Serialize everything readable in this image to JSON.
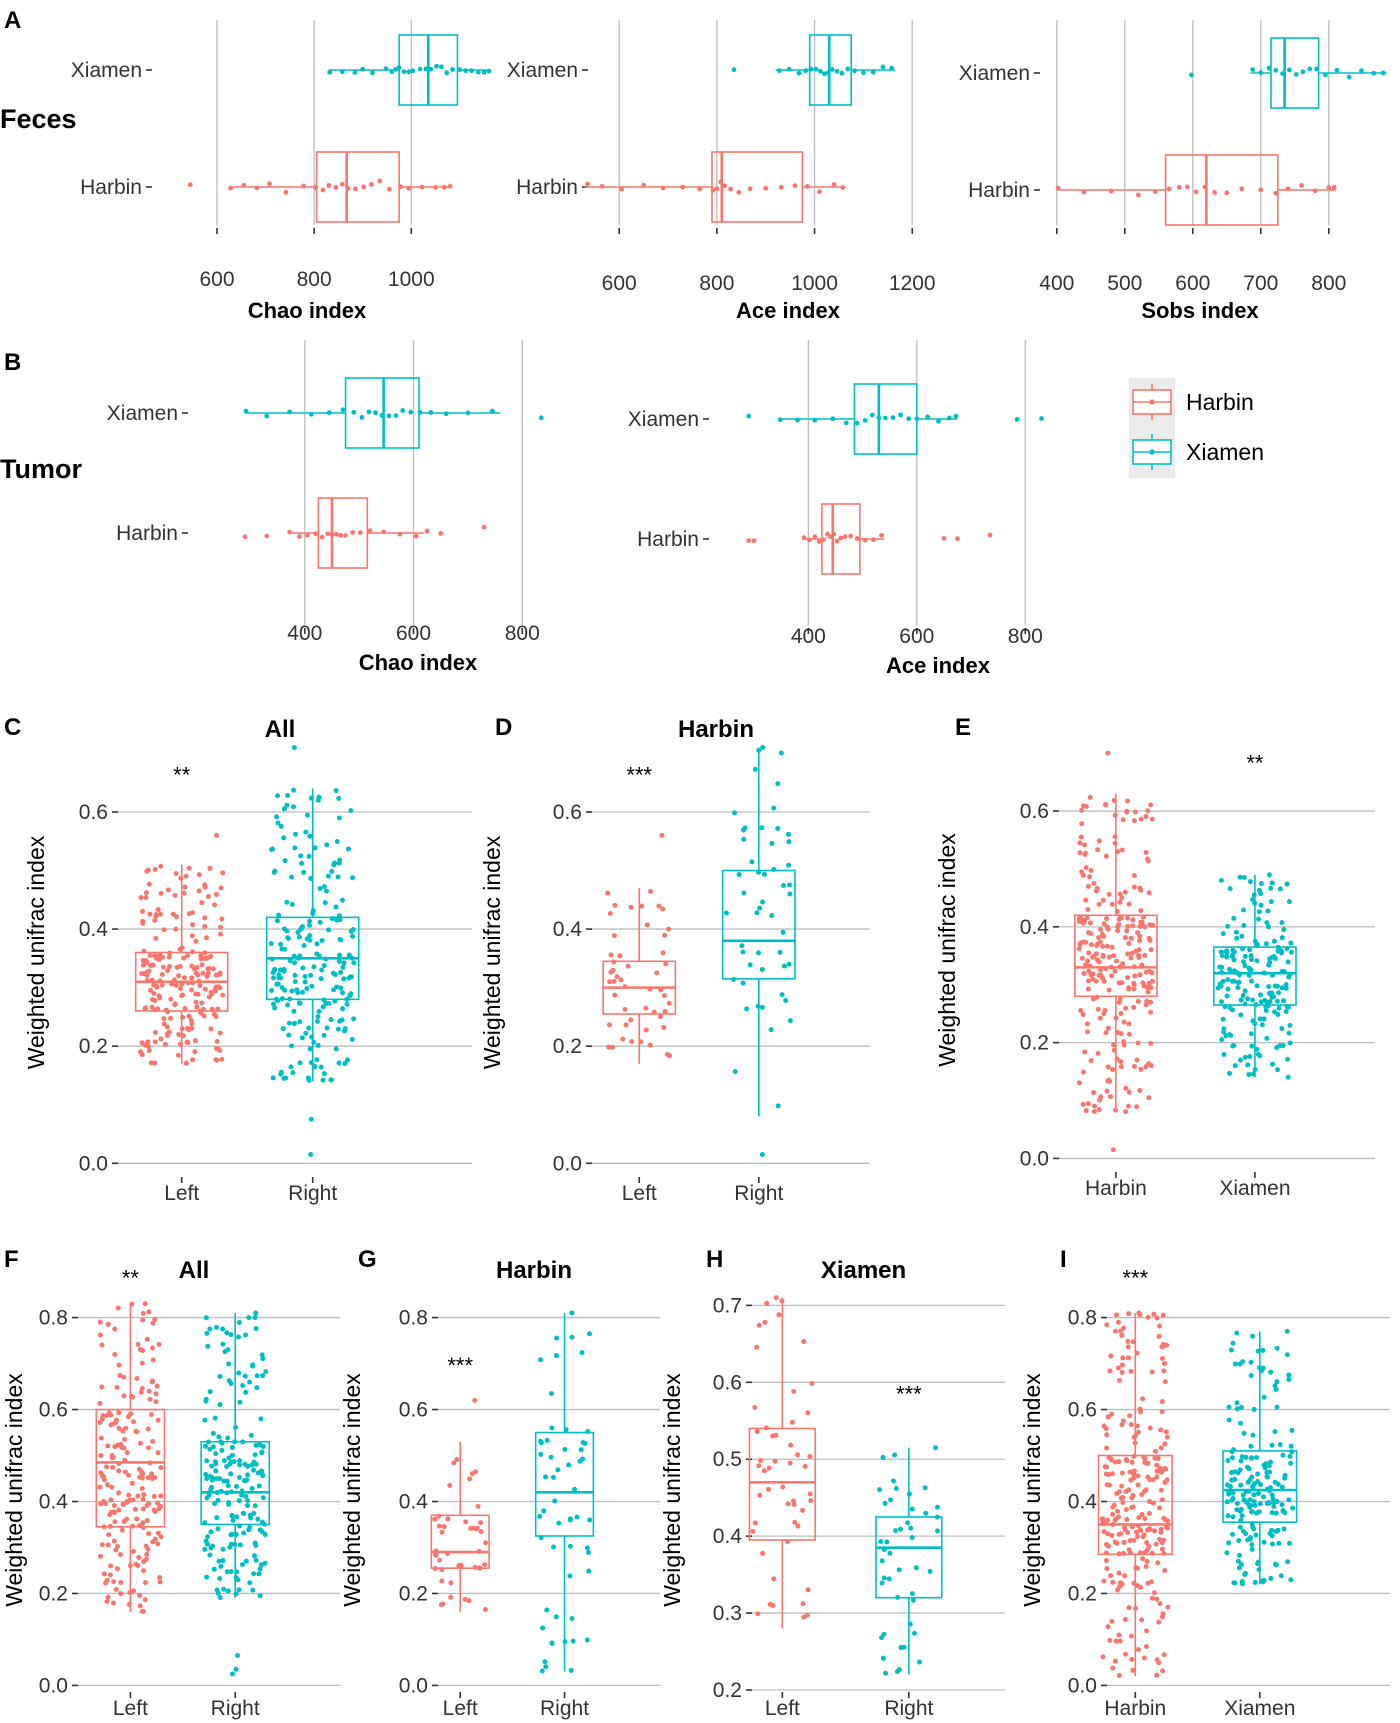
{
  "colors": {
    "harbin": "#F8766D",
    "xiamen": "#00BFC4",
    "grid": "#BDBDBD",
    "legend_bg": "#EBEBEB"
  },
  "row_labels": {
    "feces": "Feces",
    "tumor": "Tumor"
  },
  "legend": {
    "items": [
      "Harbin",
      "Xiamen"
    ]
  },
  "chart_data": [
    {
      "id": "A1",
      "panel": "A",
      "type": "box",
      "orientation": "horizontal",
      "title": "",
      "xlabel": "Chao index",
      "ylabel": "",
      "categories": [
        "Xiamen",
        "Harbin"
      ],
      "xlim": [
        530,
        1090
      ],
      "ticks": [
        600,
        800,
        1000
      ],
      "tick_labels": [
        "600",
        "800",
        "1000"
      ],
      "series": [
        {
          "name": "Xiamen",
          "group": "xiamen",
          "whisker_low": 830,
          "q1": 975,
          "median": 1035,
          "q3": 1095,
          "whisker_high": 1160,
          "points": [
            832,
            858,
            884,
            900,
            920,
            948,
            960,
            968,
            975,
            985,
            995,
            1003,
            1018,
            1030,
            1040,
            1052,
            1062,
            1073,
            1085,
            1100,
            1112,
            1124,
            1138,
            1150,
            1160
          ]
        },
        {
          "name": "Harbin",
          "group": "harbin",
          "whisker_low": 625,
          "q1": 805,
          "median": 867,
          "q3": 975,
          "whisker_high": 1080,
          "points": [
            628,
            655,
            682,
            708,
            742,
            778,
            803,
            818,
            830,
            845,
            858,
            870,
            885,
            902,
            918,
            935,
            955,
            978,
            995,
            1022,
            1050,
            1068,
            1080
          ],
          "outliers": [
            545
          ]
        }
      ]
    },
    {
      "id": "A2",
      "panel": "",
      "type": "box",
      "orientation": "horizontal",
      "title": "",
      "xlabel": "Ace index",
      "ylabel": "",
      "categories": [
        "Xiamen",
        "Harbin"
      ],
      "xlim": [
        530,
        1265
      ],
      "ticks": [
        600,
        800,
        1000,
        1200
      ],
      "tick_labels": [
        "600",
        "800",
        "1000",
        "1200"
      ],
      "series": [
        {
          "name": "Xiamen",
          "group": "xiamen",
          "whisker_low": 920,
          "q1": 990,
          "median": 1030,
          "q3": 1075,
          "whisker_high": 1165,
          "points": [
            928,
            948,
            968,
            982,
            993,
            1003,
            1012,
            1020,
            1028,
            1036,
            1046,
            1056,
            1068,
            1082,
            1100,
            1120,
            1140,
            1158
          ],
          "outliers": [
            835
          ]
        },
        {
          "name": "Harbin",
          "group": "harbin",
          "whisker_low": 530,
          "q1": 790,
          "median": 810,
          "q3": 975,
          "whisker_high": 1060,
          "points": [
            535,
            565,
            605,
            650,
            690,
            730,
            765,
            792,
            800,
            808,
            816,
            828,
            845,
            868,
            900,
            932,
            960,
            985,
            1010,
            1040,
            1058
          ]
        }
      ]
    },
    {
      "id": "A3",
      "panel": "",
      "type": "box",
      "orientation": "horizontal",
      "title": "",
      "xlabel": "Sobs index",
      "ylabel": "",
      "categories": [
        "Xiamen",
        "Harbin"
      ],
      "xlim": [
        390,
        890
      ],
      "ticks": [
        400,
        500,
        600,
        700,
        800
      ],
      "tick_labels": [
        "400",
        "500",
        "600",
        "700",
        "800"
      ],
      "series": [
        {
          "name": "Xiamen",
          "group": "xiamen",
          "whisker_low": 685,
          "q1": 715,
          "median": 735,
          "q3": 785,
          "whisker_high": 885,
          "points": [
            688,
            700,
            712,
            722,
            732,
            742,
            752,
            762,
            772,
            782,
            795,
            812,
            830,
            848,
            866,
            880
          ],
          "outliers": [
            598
          ]
        },
        {
          "name": "Harbin",
          "group": "harbin",
          "whisker_low": 400,
          "q1": 560,
          "median": 620,
          "q3": 725,
          "whisker_high": 810,
          "points": [
            402,
            440,
            480,
            520,
            545,
            565,
            580,
            592,
            605,
            618,
            632,
            650,
            672,
            700,
            722,
            740,
            760,
            780,
            800,
            808
          ]
        }
      ]
    },
    {
      "id": "B1",
      "panel": "B",
      "type": "box",
      "orientation": "horizontal",
      "title": "",
      "xlabel": "Chao index",
      "ylabel": "",
      "categories": [
        "Xiamen",
        "Harbin"
      ],
      "xlim": [
        290,
        840
      ],
      "ticks": [
        400,
        600,
        800
      ],
      "tick_labels": [
        "400",
        "600",
        "800"
      ],
      "series": [
        {
          "name": "Xiamen",
          "group": "xiamen",
          "whisker_low": 290,
          "q1": 475,
          "median": 545,
          "q3": 610,
          "whisker_high": 760,
          "points": [
            292,
            330,
            372,
            412,
            445,
            470,
            490,
            505,
            518,
            530,
            542,
            555,
            568,
            580,
            595,
            612,
            632,
            660,
            700,
            745
          ],
          "outliers": [
            835
          ]
        },
        {
          "name": "Harbin",
          "group": "harbin",
          "whisker_low": 370,
          "q1": 425,
          "median": 450,
          "q3": 515,
          "whisker_high": 620,
          "points": [
            372,
            390,
            405,
            420,
            432,
            442,
            450,
            458,
            466,
            475,
            488,
            502,
            520,
            545,
            575,
            605,
            625,
            650
          ],
          "outliers": [
            290,
            330,
            730
          ]
        }
      ]
    },
    {
      "id": "B2",
      "panel": "",
      "type": "box",
      "orientation": "horizontal",
      "title": "",
      "xlabel": "Ace index",
      "ylabel": "",
      "categories": [
        "Xiamen",
        "Harbin"
      ],
      "xlim": [
        250,
        840
      ],
      "ticks": [
        400,
        600,
        800
      ],
      "tick_labels": [
        "400",
        "600",
        "800"
      ],
      "series": [
        {
          "name": "Xiamen",
          "group": "xiamen",
          "whisker_low": 345,
          "q1": 485,
          "median": 530,
          "q3": 600,
          "whisker_high": 675,
          "points": [
            348,
            380,
            412,
            445,
            470,
            490,
            505,
            518,
            530,
            542,
            556,
            570,
            585,
            600,
            620,
            640,
            660,
            672
          ],
          "outliers": [
            290,
            785,
            830
          ]
        },
        {
          "name": "Harbin",
          "group": "harbin",
          "whisker_low": 390,
          "q1": 425,
          "median": 445,
          "q3": 495,
          "whisker_high": 540,
          "points": [
            392,
            402,
            412,
            420,
            428,
            435,
            441,
            447,
            453,
            460,
            468,
            478,
            490,
            505,
            520,
            535
          ],
          "outliers": [
            290,
            300,
            650,
            675,
            735
          ]
        }
      ]
    },
    {
      "id": "C",
      "panel": "C",
      "type": "box",
      "orientation": "vertical",
      "title": "All",
      "xlabel": "",
      "ylabel": "Weighted unifrac index",
      "categories": [
        "Left",
        "Right"
      ],
      "ylim": [
        -0.02,
        0.74
      ],
      "ticks": [
        0.0,
        0.2,
        0.4,
        0.6
      ],
      "tick_labels": [
        "0.0",
        "0.2",
        "0.4",
        "0.6"
      ],
      "significance": "**",
      "significance_at": {
        "category": "Left",
        "y": 0.65
      },
      "series": [
        {
          "name": "Left",
          "group": "harbin",
          "whisker_low": 0.17,
          "q1": 0.26,
          "median": 0.31,
          "q3": 0.36,
          "whisker_high": 0.51,
          "n_points": 220,
          "max_point": 0.56
        },
        {
          "name": "Right",
          "group": "xiamen",
          "whisker_low": 0.14,
          "q1": 0.28,
          "median": 0.35,
          "q3": 0.42,
          "whisker_high": 0.64,
          "n_points": 220,
          "max_point": 0.71,
          "outliers": [
            0.075,
            0.015
          ]
        }
      ]
    },
    {
      "id": "D",
      "panel": "D",
      "type": "box",
      "orientation": "vertical",
      "title": "Harbin",
      "xlabel": "",
      "ylabel": "Weighted unifrac index",
      "categories": [
        "Left",
        "Right"
      ],
      "ylim": [
        -0.02,
        0.74
      ],
      "ticks": [
        0.0,
        0.2,
        0.4,
        0.6
      ],
      "tick_labels": [
        "0.0",
        "0.2",
        "0.4",
        "0.6"
      ],
      "significance": "***",
      "significance_at": {
        "category": "Left",
        "y": 0.65
      },
      "series": [
        {
          "name": "Left",
          "group": "harbin",
          "whisker_low": 0.17,
          "q1": 0.255,
          "median": 0.3,
          "q3": 0.345,
          "whisker_high": 0.47,
          "n_points": 50,
          "max_point": 0.56
        },
        {
          "name": "Right",
          "group": "xiamen",
          "whisker_low": 0.08,
          "q1": 0.315,
          "median": 0.38,
          "q3": 0.5,
          "whisker_high": 0.71,
          "n_points": 50,
          "max_point": 0.71,
          "outliers": [
            0.015
          ]
        }
      ]
    },
    {
      "id": "E",
      "panel": "E",
      "type": "box",
      "orientation": "vertical",
      "title": "",
      "xlabel": "",
      "ylabel": "Weighted unifrac index",
      "categories": [
        "Harbin",
        "Xiamen"
      ],
      "ylim": [
        -0.02,
        0.74
      ],
      "ticks": [
        0.0,
        0.2,
        0.4,
        0.6
      ],
      "tick_labels": [
        "0.0",
        "0.2",
        "0.4",
        "0.6"
      ],
      "significance": "**",
      "significance_at": {
        "category": "Xiamen",
        "y": 0.67
      },
      "series": [
        {
          "name": "Harbin",
          "group": "harbin",
          "whisker_low": 0.08,
          "q1": 0.28,
          "median": 0.33,
          "q3": 0.42,
          "whisker_high": 0.63,
          "n_points": 260,
          "max_point": 0.7,
          "outliers": [
            0.015
          ]
        },
        {
          "name": "Xiamen",
          "group": "xiamen",
          "whisker_low": 0.14,
          "q1": 0.265,
          "median": 0.32,
          "q3": 0.365,
          "whisker_high": 0.49,
          "n_points": 190,
          "max_point": 0.49
        }
      ]
    },
    {
      "id": "F",
      "panel": "F",
      "type": "box",
      "orientation": "vertical",
      "title": "All",
      "xlabel": "",
      "ylabel": "Weighted unifrac index",
      "categories": [
        "Left",
        "Right"
      ],
      "ylim": [
        -0.01,
        0.86
      ],
      "ticks": [
        0.0,
        0.2,
        0.4,
        0.6,
        0.8
      ],
      "tick_labels": [
        "0.0",
        "0.2",
        "0.4",
        "0.6",
        "0.8"
      ],
      "significance": "**",
      "significance_at": {
        "category": "Left",
        "y": 0.87
      },
      "series": [
        {
          "name": "Left",
          "group": "harbin",
          "whisker_low": 0.16,
          "q1": 0.345,
          "median": 0.485,
          "q3": 0.6,
          "whisker_high": 0.83,
          "n_points": 200,
          "max_point": 0.83
        },
        {
          "name": "Right",
          "group": "xiamen",
          "whisker_low": 0.19,
          "q1": 0.35,
          "median": 0.42,
          "q3": 0.53,
          "whisker_high": 0.81,
          "n_points": 200,
          "max_point": 0.81,
          "outliers": [
            0.065,
            0.035,
            0.025
          ]
        }
      ]
    },
    {
      "id": "G",
      "panel": "G",
      "type": "box",
      "orientation": "vertical",
      "title": "Harbin",
      "xlabel": "",
      "ylabel": "Weighted unifrac index",
      "categories": [
        "Left",
        "Right"
      ],
      "ylim": [
        -0.01,
        0.86
      ],
      "ticks": [
        0.0,
        0.2,
        0.4,
        0.6,
        0.8
      ],
      "tick_labels": [
        "0.0",
        "0.2",
        "0.4",
        "0.6",
        "0.8"
      ],
      "significance": "***",
      "significance_at": {
        "category": "Left",
        "y": 0.68
      },
      "series": [
        {
          "name": "Left",
          "group": "harbin",
          "whisker_low": 0.16,
          "q1": 0.255,
          "median": 0.29,
          "q3": 0.37,
          "whisker_high": 0.53,
          "n_points": 45,
          "max_point": 0.62
        },
        {
          "name": "Right",
          "group": "xiamen",
          "whisker_low": 0.03,
          "q1": 0.325,
          "median": 0.42,
          "q3": 0.55,
          "whisker_high": 0.81,
          "n_points": 55,
          "max_point": 0.81
        }
      ]
    },
    {
      "id": "H",
      "panel": "H",
      "type": "box",
      "orientation": "vertical",
      "title": "Xiamen",
      "xlabel": "",
      "ylabel": "Weighted unifrac index",
      "categories": [
        "Left",
        "Right"
      ],
      "ylim": [
        0.2,
        0.72
      ],
      "ticks": [
        0.2,
        0.3,
        0.4,
        0.5,
        0.6,
        0.7
      ],
      "tick_labels": [
        "0.2",
        "0.3",
        "0.4",
        "0.5",
        "0.6",
        "0.7"
      ],
      "significance": "***",
      "significance_at": {
        "category": "Right",
        "y": 0.575
      },
      "series": [
        {
          "name": "Left",
          "group": "harbin",
          "whisker_low": 0.28,
          "q1": 0.395,
          "median": 0.47,
          "q3": 0.54,
          "whisker_high": 0.71,
          "n_points": 50,
          "max_point": 0.71
        },
        {
          "name": "Right",
          "group": "xiamen",
          "whisker_low": 0.22,
          "q1": 0.32,
          "median": 0.385,
          "q3": 0.425,
          "whisker_high": 0.515,
          "n_points": 45,
          "max_point": 0.515
        }
      ]
    },
    {
      "id": "I",
      "panel": "I",
      "type": "box",
      "orientation": "vertical",
      "title": "",
      "xlabel": "",
      "ylabel": "Weighted unifrac index",
      "categories": [
        "Harbin",
        "Xiamen"
      ],
      "ylim": [
        -0.01,
        0.86
      ],
      "ticks": [
        0.0,
        0.2,
        0.4,
        0.6,
        0.8
      ],
      "tick_labels": [
        "0.0",
        "0.2",
        "0.4",
        "0.6",
        "0.8"
      ],
      "significance": "***",
      "significance_at": {
        "category": "Harbin",
        "y": 0.87
      },
      "series": [
        {
          "name": "Harbin",
          "group": "harbin",
          "whisker_low": 0.02,
          "q1": 0.285,
          "median": 0.35,
          "q3": 0.5,
          "whisker_high": 0.81,
          "n_points": 260,
          "max_point": 0.81
        },
        {
          "name": "Xiamen",
          "group": "xiamen",
          "whisker_low": 0.22,
          "q1": 0.355,
          "median": 0.425,
          "q3": 0.51,
          "whisker_high": 0.77,
          "n_points": 190,
          "max_point": 0.77
        }
      ]
    }
  ]
}
